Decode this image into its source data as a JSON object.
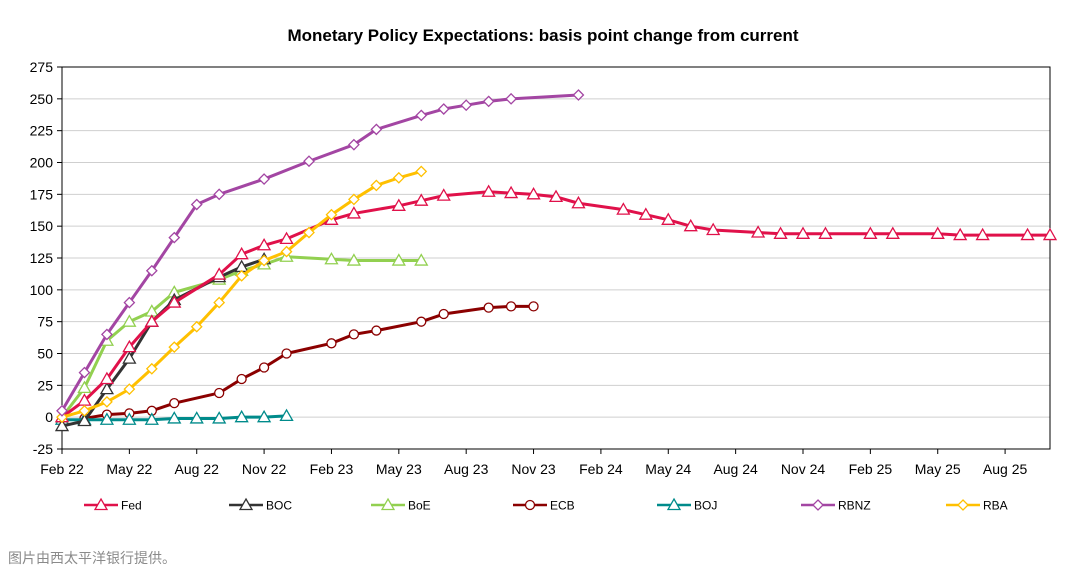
{
  "caption": "图片由西太平洋银行提供。",
  "chart_data": {
    "type": "line",
    "title": "Monetary Policy Expectations: basis point change from current",
    "xlabel": "",
    "ylabel": "",
    "ylim": [
      -25,
      275
    ],
    "yticks": [
      -25,
      0,
      25,
      50,
      75,
      100,
      125,
      150,
      175,
      200,
      225,
      250,
      275
    ],
    "xlim": [
      "2022-02",
      "2025-10"
    ],
    "xtick_labels": [
      "Feb 22",
      "May 22",
      "Aug 22",
      "Nov 22",
      "Feb 23",
      "May 23",
      "Aug 23",
      "Nov 23",
      "Feb 24",
      "May 24",
      "Aug 24",
      "Nov 24",
      "Feb 25",
      "May 25",
      "Aug 25"
    ],
    "grid": true,
    "legend_position": "bottom",
    "series": [
      {
        "name": "Fed",
        "color": "#e0114a",
        "marker": "triangle",
        "x": [
          "2022-02",
          "2022-03",
          "2022-04",
          "2022-05",
          "2022-06",
          "2022-07",
          "2022-09",
          "2022-10",
          "2022-11",
          "2022-12",
          "2023-02",
          "2023-03",
          "2023-05",
          "2023-06",
          "2023-07",
          "2023-09",
          "2023-10",
          "2023-11",
          "2023-12",
          "2024-01",
          "2024-03",
          "2024-04",
          "2024-05",
          "2024-06",
          "2024-07",
          "2024-09",
          "2024-10",
          "2024-11",
          "2024-12",
          "2025-02",
          "2025-03",
          "2025-05",
          "2025-06",
          "2025-07",
          "2025-09",
          "2025-10"
        ],
        "y": [
          0,
          13,
          30,
          55,
          75,
          90,
          112,
          128,
          135,
          140,
          155,
          160,
          166,
          170,
          174,
          177,
          176,
          175,
          173,
          168,
          163,
          159,
          155,
          150,
          147,
          145,
          144,
          144,
          144,
          144,
          144,
          144,
          143,
          143,
          143,
          143
        ]
      },
      {
        "name": "BOC",
        "color": "#333333",
        "marker": "triangle",
        "x": [
          "2022-02",
          "2022-03",
          "2022-04",
          "2022-05",
          "2022-06",
          "2022-07",
          "2022-09",
          "2022-10",
          "2022-11"
        ],
        "y": [
          -7,
          -3,
          22,
          46,
          75,
          92,
          110,
          118,
          124
        ]
      },
      {
        "name": "BoE",
        "color": "#92d050",
        "marker": "triangle",
        "x": [
          "2022-02",
          "2022-03",
          "2022-04",
          "2022-05",
          "2022-06",
          "2022-07",
          "2022-09",
          "2022-10",
          "2022-11",
          "2022-12",
          "2023-02",
          "2023-03",
          "2023-05",
          "2023-06"
        ],
        "y": [
          0,
          23,
          60,
          75,
          83,
          98,
          108,
          115,
          120,
          126,
          124,
          123,
          123,
          123
        ]
      },
      {
        "name": "ECB",
        "color": "#8b0000",
        "marker": "circle",
        "x": [
          "2022-03",
          "2022-04",
          "2022-05",
          "2022-06",
          "2022-07",
          "2022-09",
          "2022-10",
          "2022-11",
          "2022-12",
          "2023-02",
          "2023-03",
          "2023-04",
          "2023-06",
          "2023-07",
          "2023-09",
          "2023-10",
          "2023-11"
        ],
        "y": [
          -1,
          2,
          3,
          5,
          11,
          19,
          30,
          39,
          50,
          58,
          65,
          68,
          75,
          81,
          86,
          87,
          87
        ]
      },
      {
        "name": "BOJ",
        "color": "#008b8b",
        "marker": "triangle",
        "x": [
          "2022-02",
          "2022-03",
          "2022-04",
          "2022-05",
          "2022-06",
          "2022-07",
          "2022-08",
          "2022-09",
          "2022-10",
          "2022-11",
          "2022-12"
        ],
        "y": [
          -2,
          -2,
          -2,
          -2,
          -2,
          -1,
          -1,
          -1,
          0,
          0,
          1
        ]
      },
      {
        "name": "RBNZ",
        "color": "#a346a3",
        "marker": "diamond",
        "x": [
          "2022-02",
          "2022-03",
          "2022-04",
          "2022-05",
          "2022-06",
          "2022-07",
          "2022-08",
          "2022-09",
          "2022-11",
          "2023-01",
          "2023-03",
          "2023-04",
          "2023-06",
          "2023-07",
          "2023-08",
          "2023-09",
          "2023-10",
          "2024-01"
        ],
        "y": [
          5,
          35,
          65,
          90,
          115,
          141,
          167,
          175,
          187,
          201,
          214,
          226,
          237,
          242,
          245,
          248,
          250,
          253
        ]
      },
      {
        "name": "RBA",
        "color": "#ffc000",
        "marker": "diamond",
        "x": [
          "2022-02",
          "2022-03",
          "2022-04",
          "2022-05",
          "2022-06",
          "2022-07",
          "2022-08",
          "2022-09",
          "2022-10",
          "2022-11",
          "2022-12",
          "2023-01",
          "2023-02",
          "2023-03",
          "2023-04",
          "2023-05",
          "2023-06"
        ],
        "y": [
          0,
          5,
          12,
          22,
          38,
          55,
          71,
          90,
          111,
          123,
          130,
          145,
          159,
          171,
          182,
          188,
          193
        ]
      }
    ]
  }
}
